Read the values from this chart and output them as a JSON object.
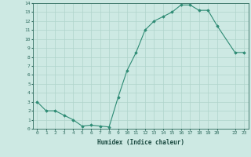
{
  "xlabel": "Humidex (Indice chaleur)",
  "ylabel": "",
  "x_values": [
    0,
    1,
    2,
    3,
    4,
    5,
    6,
    7,
    8,
    9,
    10,
    11,
    12,
    13,
    14,
    15,
    16,
    17,
    18,
    19,
    20,
    22,
    23
  ],
  "y_values": [
    3,
    2,
    2,
    1.5,
    1,
    0.3,
    0.4,
    0.3,
    0.2,
    3.5,
    6.5,
    8.5,
    11,
    12,
    12.5,
    13,
    13.8,
    13.8,
    13.2,
    13.2,
    11.5,
    8.5,
    8.5
  ],
  "line_color": "#2e8b74",
  "marker": "D",
  "marker_size": 1.8,
  "bg_color": "#cde9e3",
  "grid_color": "#b0d4cc",
  "tick_color": "#2e6b5e",
  "label_color": "#1a4a40",
  "xlim": [
    -0.5,
    23.5
  ],
  "ylim": [
    0,
    14
  ],
  "yticks": [
    0,
    1,
    2,
    3,
    4,
    5,
    6,
    7,
    8,
    9,
    10,
    11,
    12,
    13,
    14
  ],
  "xticks": [
    0,
    1,
    2,
    3,
    4,
    5,
    6,
    7,
    8,
    9,
    10,
    11,
    12,
    13,
    14,
    15,
    16,
    17,
    18,
    19,
    20,
    22,
    23
  ],
  "xtick_labels": [
    "0",
    "1",
    "2",
    "3",
    "4",
    "5",
    "6",
    "7",
    "8",
    "9",
    "10",
    "11",
    "12",
    "13",
    "14",
    "15",
    "16",
    "17",
    "18",
    "19",
    "20",
    "22",
    "23"
  ]
}
